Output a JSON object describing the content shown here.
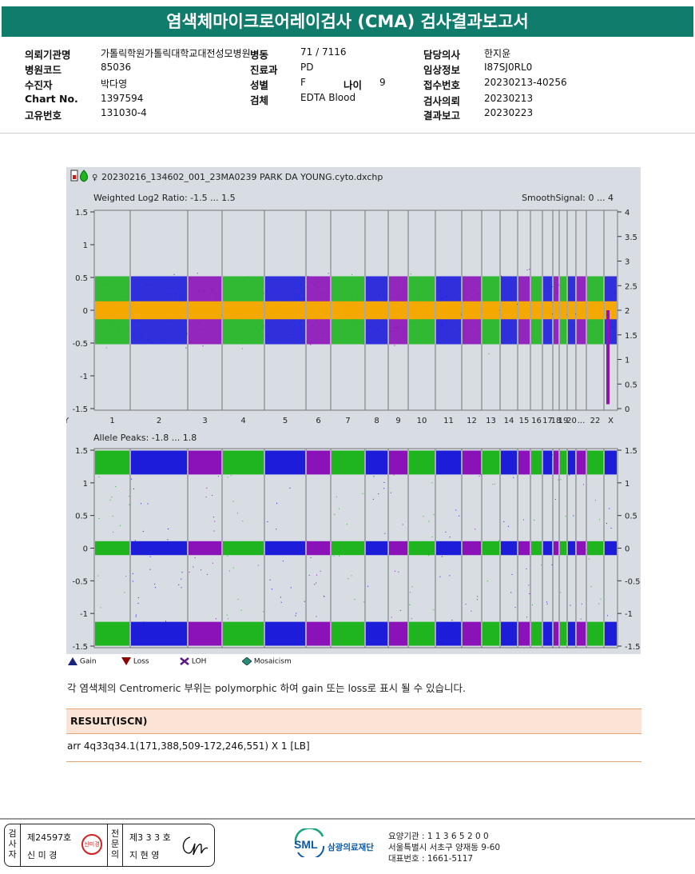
{
  "title": "염색체마이크로어레이검사 (CMA) 검사결과보고서",
  "info": {
    "col1": [
      {
        "label": "의뢰기관명",
        "value": "가톨릭학원가톨릭대학교대전성모병원"
      },
      {
        "label": "병원코드",
        "value": "85036"
      },
      {
        "label": "수진자",
        "value": "박다영"
      },
      {
        "label": "Chart No.",
        "value": "1397594"
      },
      {
        "label": "고유번호",
        "value": "131030-4"
      }
    ],
    "col2": [
      {
        "label": "병동",
        "value": "71 / 7116"
      },
      {
        "label": "진료과",
        "value": "PD"
      },
      {
        "label": "성별",
        "value": "F"
      },
      {
        "label": "검체",
        "value": "EDTA Blood"
      }
    ],
    "age": {
      "label": "나이",
      "value": "9"
    },
    "col3": [
      {
        "label": "담당의사",
        "value": "한지윤"
      },
      {
        "label": "임상정보",
        "value": "I87SJ0RL0"
      },
      {
        "label": "접수번호",
        "value": "20230213-40256"
      },
      {
        "label": "검사의뢰",
        "value": "20230213"
      },
      {
        "label": "결과보고",
        "value": "20230223"
      }
    ]
  },
  "plot": {
    "file_name": "20230216_134602_001_23MA0239 PARK DA YOUNG.cyto.dxchp",
    "top_title": "Weighted Log2 Ratio: -1.5 ... 1.5",
    "top_right_title": "SmoothSignal: 0 ... 4",
    "bottom_title": "Allele Peaks: -1.8 ... 1.8",
    "top_left_ticks": [
      "1.5",
      "1",
      "0.5",
      "0",
      "-0.5",
      "-1",
      "-1.5"
    ],
    "top_right_ticks": [
      "4",
      "3.5",
      "3",
      "2.5",
      "2",
      "1.5",
      "1",
      "0.5",
      "0"
    ],
    "bottom_left_ticks": [
      "1.5",
      "1",
      "0.5",
      "0",
      "-0.5",
      "-1",
      "-1.5"
    ],
    "bottom_right_ticks": [
      "1.5",
      "1",
      "0.5",
      "0",
      "-0.5",
      "-1",
      "-1.5"
    ],
    "chromosomes": [
      "1",
      "2",
      "3",
      "4",
      "5",
      "6",
      "7",
      "8",
      "9",
      "10",
      "11",
      "12",
      "13",
      "14",
      "15",
      "16",
      "17",
      "18",
      "19",
      "20",
      "21",
      "22",
      "X",
      "Y"
    ],
    "chromosome_labels": [
      "1",
      "2",
      "3",
      "4",
      "5",
      "6",
      "7",
      "8",
      "9",
      "10",
      "11",
      "12",
      "13",
      "14",
      "15",
      "16",
      "17",
      "18",
      "19",
      "20",
      "...",
      "22",
      "X",
      "Y"
    ],
    "colors": {
      "green": "#1fb51f",
      "blue": "#1d1dd9",
      "purple": "#8b12b8",
      "orange": "#f5a800",
      "background": "#d7dde3"
    }
  },
  "legend": [
    {
      "icon": "gain-triangle-icon",
      "label": "Gain",
      "color": "#1a237e"
    },
    {
      "icon": "loss-triangle-icon",
      "label": "Loss",
      "color": "#8b0000"
    },
    {
      "icon": "loh-icon",
      "label": "LOH",
      "color": "#5a1a8a"
    },
    {
      "icon": "mosaicism-diamond-icon",
      "label": "Mosaicism",
      "color": "#2e8b7a"
    }
  ],
  "note": "각 염색체의 Centromeric 부위는 polymorphic 하여 gain 또는 loss로 표시 될 수 있습니다.",
  "result": {
    "heading": "RESULT(ISCN)",
    "text": "arr 4q33q34.1(171,388,509-172,246,551) X 1 [LB]"
  },
  "signatures": {
    "examiner_label": "검사자",
    "examiner_license": "제24597호",
    "examiner_name": "신 미 경",
    "examiner_stamp": "신미경",
    "specialist_label": "전문의",
    "specialist_license": "제3 3 3 호",
    "specialist_name": "지 현 영"
  },
  "org": {
    "logo": "SML",
    "name": "삼광의료재단",
    "code": "요양기관 : 1 1 3 6 5 2 0 0",
    "address": "서울특별시 서초구 양재동 9-60",
    "phone": "대표번호 : 1661-5117"
  }
}
